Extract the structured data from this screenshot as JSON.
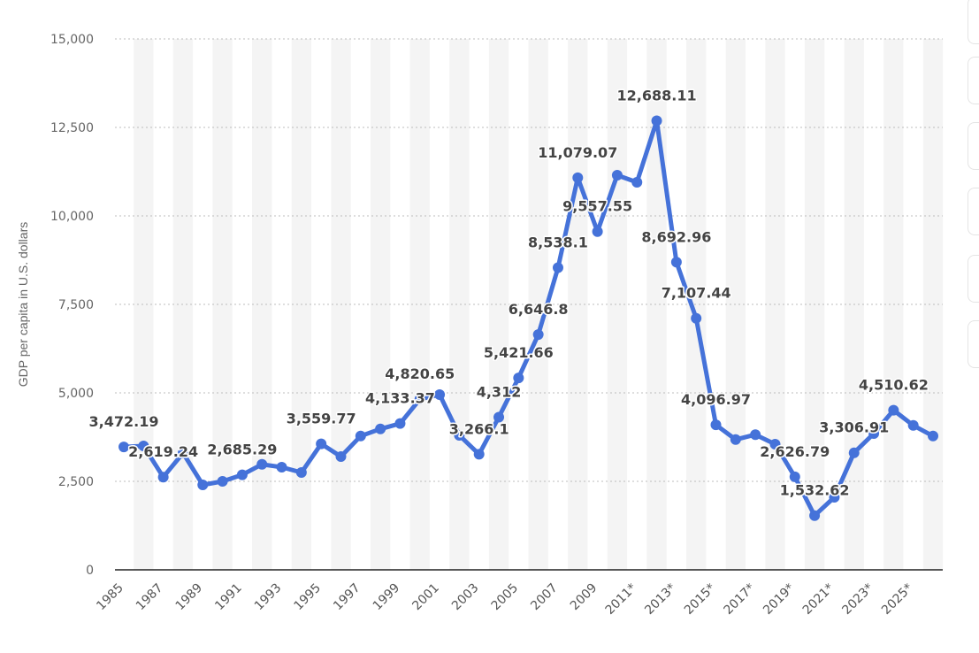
{
  "chart_data": {
    "type": "line",
    "title": "",
    "xlabel": "",
    "ylabel": "GDP per capita in U.S. dollars",
    "ylim": [
      0,
      15000
    ],
    "yticks": [
      "0",
      "2,500",
      "5,000",
      "7,500",
      "10,000",
      "12,500",
      "15,000"
    ],
    "ytick_values": [
      0,
      2500,
      5000,
      7500,
      10000,
      12500,
      15000
    ],
    "grid": true,
    "legend": "none",
    "line_color": "#4572d9",
    "categories": [
      "1985",
      "1986",
      "1987",
      "1988",
      "1989",
      "1990",
      "1991",
      "1992",
      "1993",
      "1994",
      "1995",
      "1996",
      "1997",
      "1998",
      "1999",
      "2000",
      "2001",
      "2002",
      "2003",
      "2004",
      "2005",
      "2006",
      "2007",
      "2008",
      "2009",
      "2010",
      "2011*",
      "2012*",
      "2013*",
      "2014*",
      "2015*",
      "2016*",
      "2017*",
      "2018*",
      "2019*",
      "2020*",
      "2021*",
      "2022*",
      "2023*",
      "2024*",
      "2025*",
      "2026*"
    ],
    "xtick_labels": [
      "1985",
      "1987",
      "1989",
      "1991",
      "1993",
      "1995",
      "1997",
      "1999",
      "2001",
      "2003",
      "2005",
      "2007",
      "2009",
      "2011*",
      "2013*",
      "2015*",
      "2017*",
      "2019*",
      "2021*",
      "2023*",
      "2025*"
    ],
    "values": [
      3472.19,
      3500,
      2619.24,
      3300,
      2400,
      2500,
      2685.29,
      2980,
      2900,
      2750,
      3559.77,
      3200,
      3780,
      3980,
      4133.37,
      4820.65,
      4950,
      3800,
      3266.1,
      4312,
      5421.66,
      6646.8,
      8538.1,
      11079.07,
      9557.55,
      11150,
      10950,
      12688.11,
      8692.96,
      7107.44,
      4096.97,
      3680,
      3820,
      3550,
      2626.79,
      1532.62,
      2050,
      3306.91,
      3850,
      4510.62,
      4080,
      3780
    ],
    "data_labels": [
      {
        "index": 0,
        "text": "3,472.19"
      },
      {
        "index": 2,
        "text": "2,619.24"
      },
      {
        "index": 6,
        "text": "2,685.29"
      },
      {
        "index": 10,
        "text": "3,559.77"
      },
      {
        "index": 14,
        "text": "4,133.37"
      },
      {
        "index": 15,
        "text": "4,820.65"
      },
      {
        "index": 18,
        "text": "3,266.1"
      },
      {
        "index": 19,
        "text": "4,312"
      },
      {
        "index": 20,
        "text": "5,421.66"
      },
      {
        "index": 21,
        "text": "6,646.8"
      },
      {
        "index": 22,
        "text": "8,538.1"
      },
      {
        "index": 23,
        "text": "11,079.07"
      },
      {
        "index": 24,
        "text": "9,557.55"
      },
      {
        "index": 27,
        "text": "12,688.11"
      },
      {
        "index": 28,
        "text": "8,692.96"
      },
      {
        "index": 29,
        "text": "7,107.44"
      },
      {
        "index": 30,
        "text": "4,096.97"
      },
      {
        "index": 34,
        "text": "2,626.79"
      },
      {
        "index": 35,
        "text": "1,532.62"
      },
      {
        "index": 37,
        "text": "3,306.91"
      },
      {
        "index": 39,
        "text": "4,510.62"
      }
    ]
  }
}
